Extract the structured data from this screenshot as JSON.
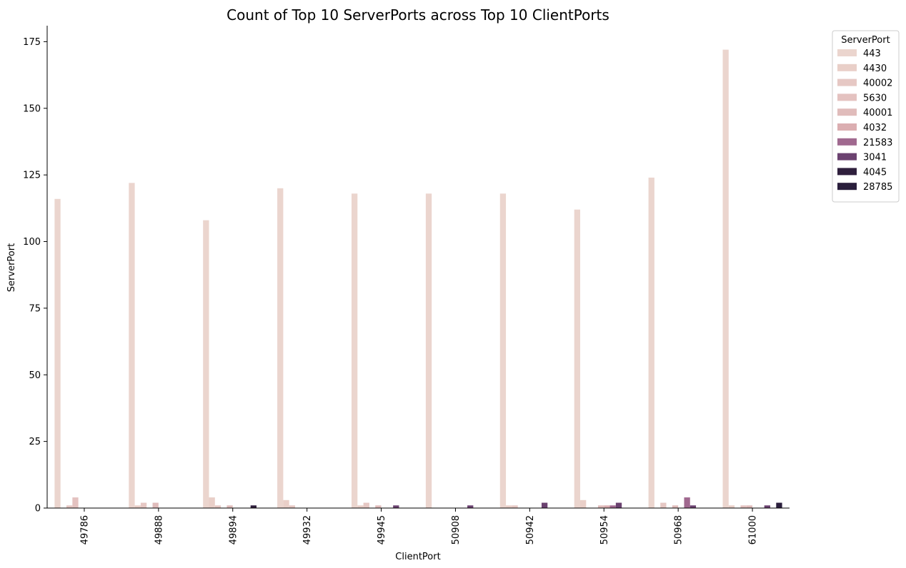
{
  "chart_data": {
    "type": "bar",
    "title": "Count of Top 10 ServerPorts across Top 10 ClientPorts",
    "xlabel": "ClientPort",
    "ylabel": "ServerPort",
    "ylim": [
      0,
      181
    ],
    "yticks": [
      0,
      25,
      50,
      75,
      100,
      125,
      150,
      175
    ],
    "grid": false,
    "legend": {
      "title": "ServerPort",
      "placement": "outside-top-right"
    },
    "categories": [
      "49786",
      "49888",
      "49894",
      "49932",
      "49945",
      "50908",
      "50942",
      "50954",
      "50968",
      "61000"
    ],
    "series": [
      {
        "name": "443",
        "color": "#ebd5ce",
        "values": [
          116,
          122,
          108,
          120,
          118,
          118,
          118,
          112,
          124,
          172
        ]
      },
      {
        "name": "4430",
        "color": "#e9cfc8",
        "values": [
          0,
          1,
          4,
          3,
          1,
          0,
          1,
          3,
          0,
          1
        ]
      },
      {
        "name": "40002",
        "color": "#e6c8c4",
        "values": [
          1,
          2,
          1,
          1,
          2,
          0,
          1,
          0,
          2,
          0
        ]
      },
      {
        "name": "5630",
        "color": "#e4c2c0",
        "values": [
          4,
          0,
          0,
          0,
          0,
          0,
          0,
          0,
          0,
          1
        ]
      },
      {
        "name": "40001",
        "color": "#e0bcbb",
        "values": [
          0,
          2,
          1,
          0,
          1,
          0,
          0,
          1,
          1,
          1
        ]
      },
      {
        "name": "4032",
        "color": "#dbaeb1",
        "values": [
          0,
          0,
          0,
          0,
          0,
          0,
          0,
          1,
          0,
          0
        ]
      },
      {
        "name": "21583",
        "color": "#a0698f",
        "values": [
          0,
          0,
          0,
          0,
          0,
          0,
          0,
          1,
          4,
          0
        ]
      },
      {
        "name": "3041",
        "color": "#6b4270",
        "values": [
          0,
          0,
          0,
          0,
          1,
          1,
          2,
          2,
          1,
          1
        ]
      },
      {
        "name": "4045",
        "color": "#2f1f3d",
        "values": [
          0,
          0,
          1,
          0,
          0,
          0,
          0,
          0,
          0,
          0
        ]
      },
      {
        "name": "28785",
        "color": "#2a1e3c",
        "values": [
          0,
          0,
          0,
          0,
          0,
          0,
          0,
          0,
          0,
          2
        ]
      }
    ]
  }
}
